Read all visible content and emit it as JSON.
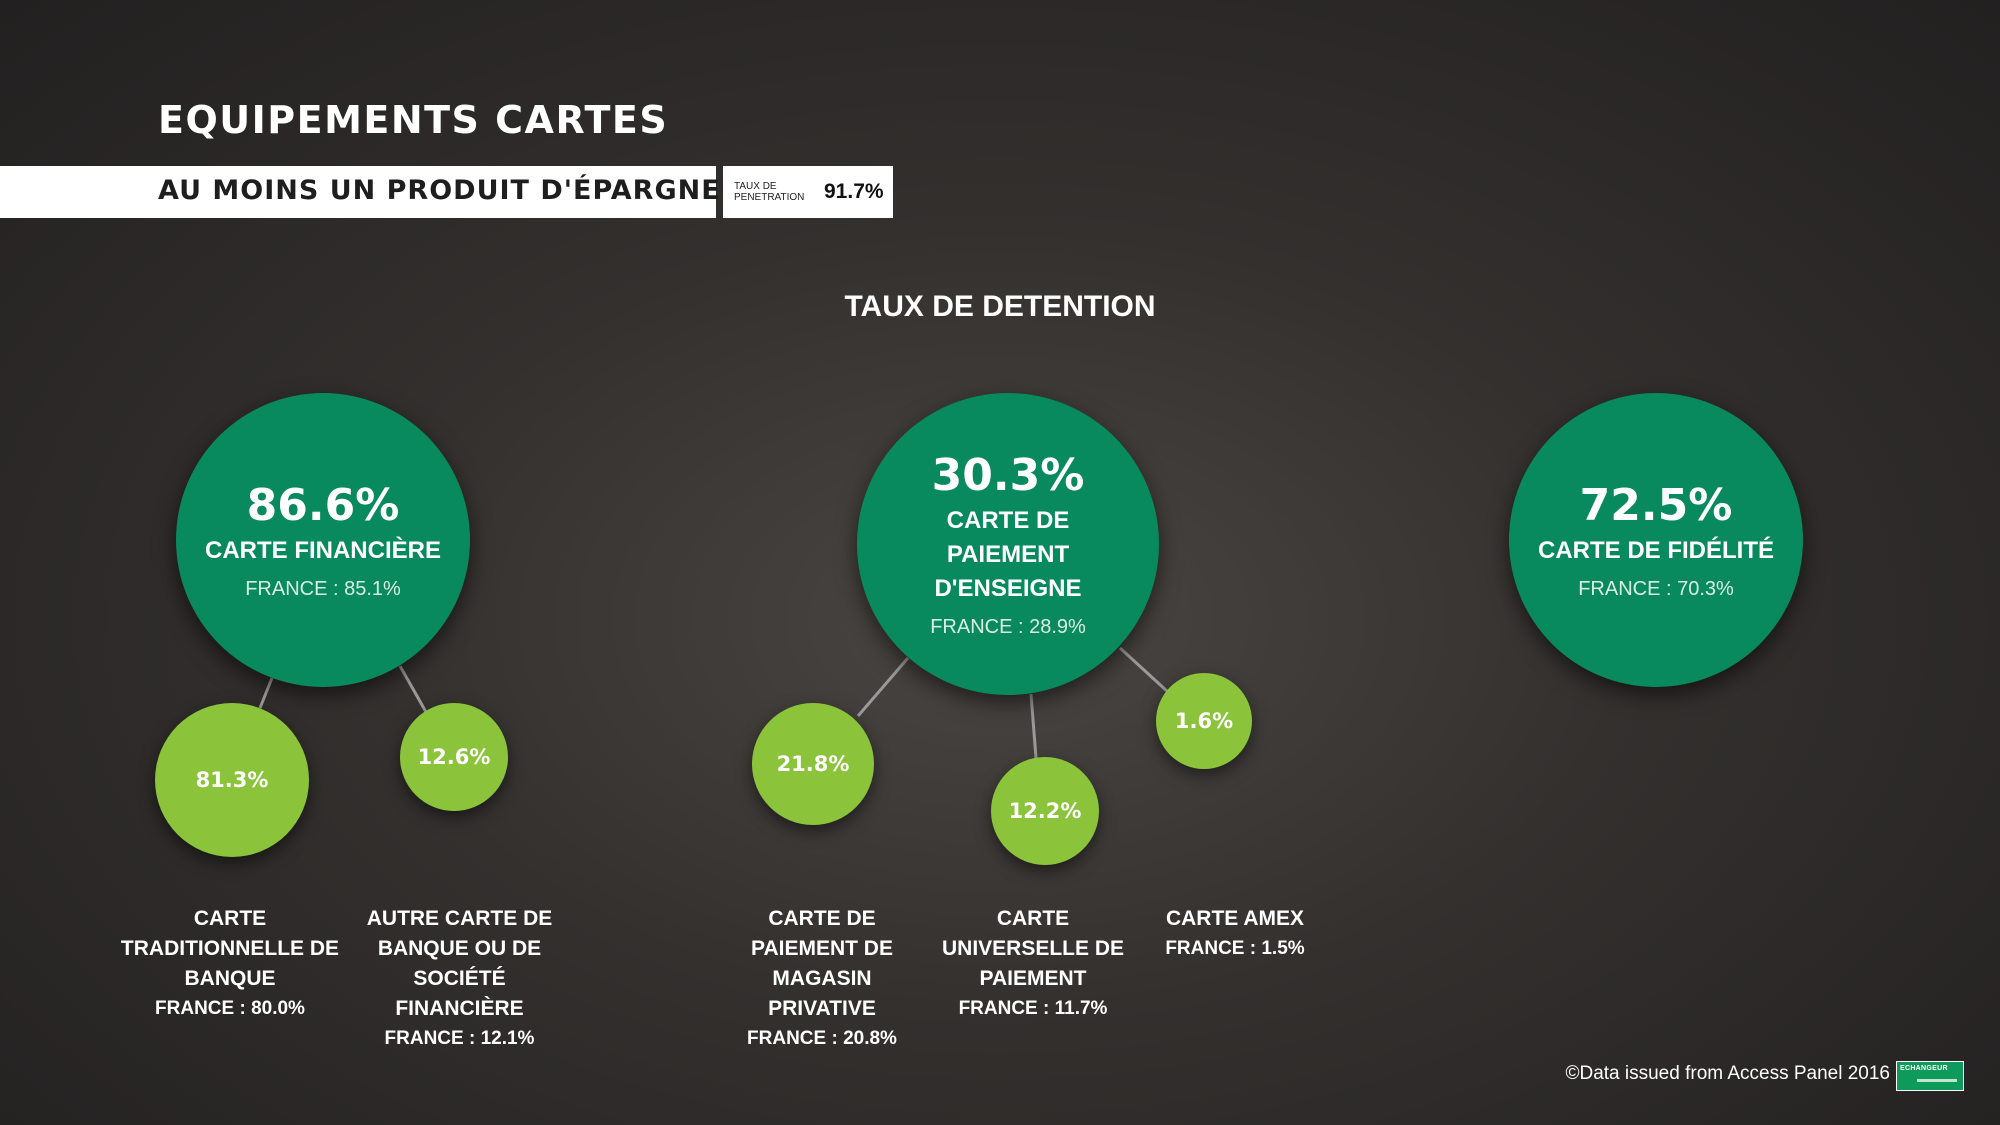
{
  "title": "EQUIPEMENTS CARTES",
  "banner": {
    "text": "AU MOINS UN PRODUIT D'ÉPARGNE",
    "taux_label": "TAUX DE PENETRATION",
    "taux_value": "91.7%"
  },
  "section_title": "TAUX DE DETENTION",
  "colors": {
    "big_circle": "#098a5e",
    "small_circle": "#8bc33a",
    "background": "#2b2827"
  },
  "chart_data": {
    "type": "bubble-hierarchy",
    "title": "TAUX DE DETENTION",
    "groups": [
      {
        "pct": "86.6%",
        "value": 86.6,
        "name": "CARTE FINANCIÈRE",
        "france": "FRANCE : 85.1%",
        "children": [
          {
            "pct": "81.3%",
            "value": 81.3,
            "label": "CARTE TRADITIONNELLE DE BANQUE",
            "france": "FRANCE : 80.0%"
          },
          {
            "pct": "12.6%",
            "value": 12.6,
            "label": "AUTRE CARTE DE BANQUE OU DE SOCIÉTÉ FINANCIÈRE",
            "france": "FRANCE : 12.1%"
          }
        ]
      },
      {
        "pct": "30.3%",
        "value": 30.3,
        "name": "CARTE DE PAIEMENT D'ENSEIGNE",
        "france": "FRANCE : 28.9%",
        "children": [
          {
            "pct": "21.8%",
            "value": 21.8,
            "label": "CARTE DE PAIEMENT DE MAGASIN PRIVATIVE",
            "france": "FRANCE : 20.8%"
          },
          {
            "pct": "12.2%",
            "value": 12.2,
            "label": "CARTE UNIVERSELLE DE PAIEMENT",
            "france": "FRANCE : 11.7%"
          },
          {
            "pct": "1.6%",
            "value": 1.6,
            "label": "CARTE AMEX",
            "france": "FRANCE : 1.5%"
          }
        ]
      },
      {
        "pct": "72.5%",
        "value": 72.5,
        "name": "CARTE DE FIDÉLITÉ",
        "france": "FRANCE : 70.3%",
        "children": []
      }
    ]
  },
  "footer": {
    "copyright": "©Data issued from Access Panel 2016",
    "logo_text": "ECHANGEUR"
  }
}
